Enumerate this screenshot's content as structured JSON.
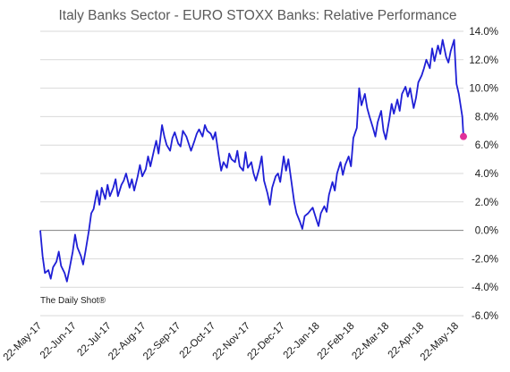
{
  "chart_data": {
    "type": "line",
    "title": "Italy Banks Sector - EURO STOXX Banks:   Relative Performance",
    "source": "The Daily Shot®",
    "y_axis": {
      "min": -6,
      "max": 14,
      "step": 2,
      "position": "right",
      "tick_labels": [
        "14.0%",
        "12.0%",
        "10.0%",
        "8.0%",
        "6.0%",
        "4.0%",
        "2.0%",
        "0.0%",
        "-2.0%",
        "-4.0%",
        "-6.0%"
      ]
    },
    "x_axis": {
      "tick_labels": [
        "22-May-17",
        "22-Jun-17",
        "22-Jul-17",
        "22-Aug-17",
        "22-Sep-17",
        "22-Oct-17",
        "22-Nov-17",
        "22-Dec-17",
        "22-Jan-18",
        "22-Feb-18",
        "22-Mar-18",
        "22-Apr-18",
        "22-May-18"
      ]
    },
    "grid": true,
    "line_color": "#1f1fd6",
    "marker_color": "#e0309a",
    "series": [
      {
        "points": [
          [
            "2017-05-22",
            0.0
          ],
          [
            "2017-05-24",
            -1.8
          ],
          [
            "2017-05-26",
            -3.0
          ],
          [
            "2017-05-29",
            -2.8
          ],
          [
            "2017-05-31",
            -3.4
          ],
          [
            "2017-06-02",
            -2.6
          ],
          [
            "2017-06-05",
            -2.2
          ],
          [
            "2017-06-07",
            -1.5
          ],
          [
            "2017-06-09",
            -2.5
          ],
          [
            "2017-06-12",
            -3.0
          ],
          [
            "2017-06-14",
            -3.6
          ],
          [
            "2017-06-16",
            -2.8
          ],
          [
            "2017-06-19",
            -1.5
          ],
          [
            "2017-06-21",
            -0.3
          ],
          [
            "2017-06-23",
            -1.2
          ],
          [
            "2017-06-26",
            -1.8
          ],
          [
            "2017-06-28",
            -2.4
          ],
          [
            "2017-06-30",
            -1.5
          ],
          [
            "2017-07-03",
            0.0
          ],
          [
            "2017-07-05",
            1.2
          ],
          [
            "2017-07-07",
            1.5
          ],
          [
            "2017-07-10",
            2.8
          ],
          [
            "2017-07-12",
            1.8
          ],
          [
            "2017-07-14",
            3.0
          ],
          [
            "2017-07-17",
            2.2
          ],
          [
            "2017-07-19",
            3.2
          ],
          [
            "2017-07-21",
            2.4
          ],
          [
            "2017-07-24",
            3.0
          ],
          [
            "2017-07-26",
            3.6
          ],
          [
            "2017-07-28",
            2.4
          ],
          [
            "2017-07-31",
            3.2
          ],
          [
            "2017-08-02",
            3.5
          ],
          [
            "2017-08-04",
            4.0
          ],
          [
            "2017-08-07",
            3.0
          ],
          [
            "2017-08-09",
            3.6
          ],
          [
            "2017-08-11",
            2.8
          ],
          [
            "2017-08-14",
            3.8
          ],
          [
            "2017-08-16",
            4.6
          ],
          [
            "2017-08-18",
            3.8
          ],
          [
            "2017-08-21",
            4.3
          ],
          [
            "2017-08-23",
            5.2
          ],
          [
            "2017-08-25",
            4.5
          ],
          [
            "2017-08-28",
            5.6
          ],
          [
            "2017-08-30",
            6.3
          ],
          [
            "2017-09-01",
            5.4
          ],
          [
            "2017-09-04",
            7.4
          ],
          [
            "2017-09-06",
            6.6
          ],
          [
            "2017-09-08",
            6.0
          ],
          [
            "2017-09-11",
            5.6
          ],
          [
            "2017-09-13",
            6.5
          ],
          [
            "2017-09-15",
            6.9
          ],
          [
            "2017-09-18",
            6.1
          ],
          [
            "2017-09-20",
            5.9
          ],
          [
            "2017-09-22",
            7.0
          ],
          [
            "2017-09-25",
            6.6
          ],
          [
            "2017-09-27",
            6.1
          ],
          [
            "2017-09-29",
            5.6
          ],
          [
            "2017-10-02",
            6.3
          ],
          [
            "2017-10-04",
            6.8
          ],
          [
            "2017-10-06",
            7.1
          ],
          [
            "2017-10-09",
            6.6
          ],
          [
            "2017-10-11",
            7.4
          ],
          [
            "2017-10-13",
            7.0
          ],
          [
            "2017-10-16",
            6.8
          ],
          [
            "2017-10-18",
            6.4
          ],
          [
            "2017-10-20",
            6.9
          ],
          [
            "2017-10-23",
            5.2
          ],
          [
            "2017-10-25",
            4.2
          ],
          [
            "2017-10-27",
            4.8
          ],
          [
            "2017-10-30",
            4.4
          ],
          [
            "2017-11-01",
            5.4
          ],
          [
            "2017-11-03",
            5.0
          ],
          [
            "2017-11-06",
            4.8
          ],
          [
            "2017-11-08",
            5.6
          ],
          [
            "2017-11-10",
            4.5
          ],
          [
            "2017-11-13",
            4.2
          ],
          [
            "2017-11-15",
            5.5
          ],
          [
            "2017-11-17",
            4.4
          ],
          [
            "2017-11-20",
            4.8
          ],
          [
            "2017-11-22",
            4.0
          ],
          [
            "2017-11-24",
            3.5
          ],
          [
            "2017-11-27",
            4.4
          ],
          [
            "2017-11-29",
            5.2
          ],
          [
            "2017-12-01",
            3.5
          ],
          [
            "2017-12-04",
            2.6
          ],
          [
            "2017-12-06",
            1.8
          ],
          [
            "2017-12-08",
            3.0
          ],
          [
            "2017-12-11",
            3.8
          ],
          [
            "2017-12-13",
            4.0
          ],
          [
            "2017-12-15",
            3.4
          ],
          [
            "2017-12-18",
            5.2
          ],
          [
            "2017-12-20",
            4.2
          ],
          [
            "2017-12-22",
            5.0
          ],
          [
            "2017-12-25",
            3.2
          ],
          [
            "2017-12-27",
            2.0
          ],
          [
            "2017-12-29",
            1.2
          ],
          [
            "2018-01-01",
            0.6
          ],
          [
            "2018-01-03",
            0.1
          ],
          [
            "2018-01-05",
            1.0
          ],
          [
            "2018-01-08",
            1.2
          ],
          [
            "2018-01-10",
            1.4
          ],
          [
            "2018-01-12",
            1.6
          ],
          [
            "2018-01-15",
            0.8
          ],
          [
            "2018-01-17",
            0.3
          ],
          [
            "2018-01-19",
            1.2
          ],
          [
            "2018-01-22",
            1.7
          ],
          [
            "2018-01-24",
            1.3
          ],
          [
            "2018-01-26",
            2.5
          ],
          [
            "2018-01-29",
            3.4
          ],
          [
            "2018-01-31",
            2.8
          ],
          [
            "2018-02-02",
            4.0
          ],
          [
            "2018-02-05",
            4.8
          ],
          [
            "2018-02-07",
            3.9
          ],
          [
            "2018-02-09",
            4.6
          ],
          [
            "2018-02-12",
            5.2
          ],
          [
            "2018-02-14",
            4.5
          ],
          [
            "2018-02-16",
            6.5
          ],
          [
            "2018-02-19",
            7.2
          ],
          [
            "2018-02-21",
            10.0
          ],
          [
            "2018-02-23",
            8.8
          ],
          [
            "2018-02-26",
            9.6
          ],
          [
            "2018-02-28",
            8.6
          ],
          [
            "2018-03-02",
            8.0
          ],
          [
            "2018-03-05",
            7.2
          ],
          [
            "2018-03-07",
            6.6
          ],
          [
            "2018-03-09",
            7.6
          ],
          [
            "2018-03-12",
            8.4
          ],
          [
            "2018-03-14",
            7.0
          ],
          [
            "2018-03-16",
            6.4
          ],
          [
            "2018-03-19",
            7.8
          ],
          [
            "2018-03-21",
            8.9
          ],
          [
            "2018-03-23",
            8.2
          ],
          [
            "2018-03-26",
            9.2
          ],
          [
            "2018-03-28",
            8.4
          ],
          [
            "2018-03-30",
            9.6
          ],
          [
            "2018-04-02",
            10.1
          ],
          [
            "2018-04-04",
            9.4
          ],
          [
            "2018-04-06",
            10.0
          ],
          [
            "2018-04-09",
            8.6
          ],
          [
            "2018-04-11",
            9.3
          ],
          [
            "2018-04-13",
            10.4
          ],
          [
            "2018-04-16",
            10.9
          ],
          [
            "2018-04-18",
            11.4
          ],
          [
            "2018-04-20",
            12.0
          ],
          [
            "2018-04-23",
            11.4
          ],
          [
            "2018-04-25",
            12.8
          ],
          [
            "2018-04-27",
            11.9
          ],
          [
            "2018-04-30",
            13.0
          ],
          [
            "2018-05-02",
            12.4
          ],
          [
            "2018-05-04",
            13.4
          ],
          [
            "2018-05-07",
            12.2
          ],
          [
            "2018-05-09",
            11.8
          ],
          [
            "2018-05-11",
            12.6
          ],
          [
            "2018-05-14",
            13.4
          ],
          [
            "2018-05-16",
            10.3
          ],
          [
            "2018-05-18",
            9.6
          ],
          [
            "2018-05-21",
            8.0
          ],
          [
            "2018-05-22",
            6.6
          ]
        ]
      }
    ]
  }
}
